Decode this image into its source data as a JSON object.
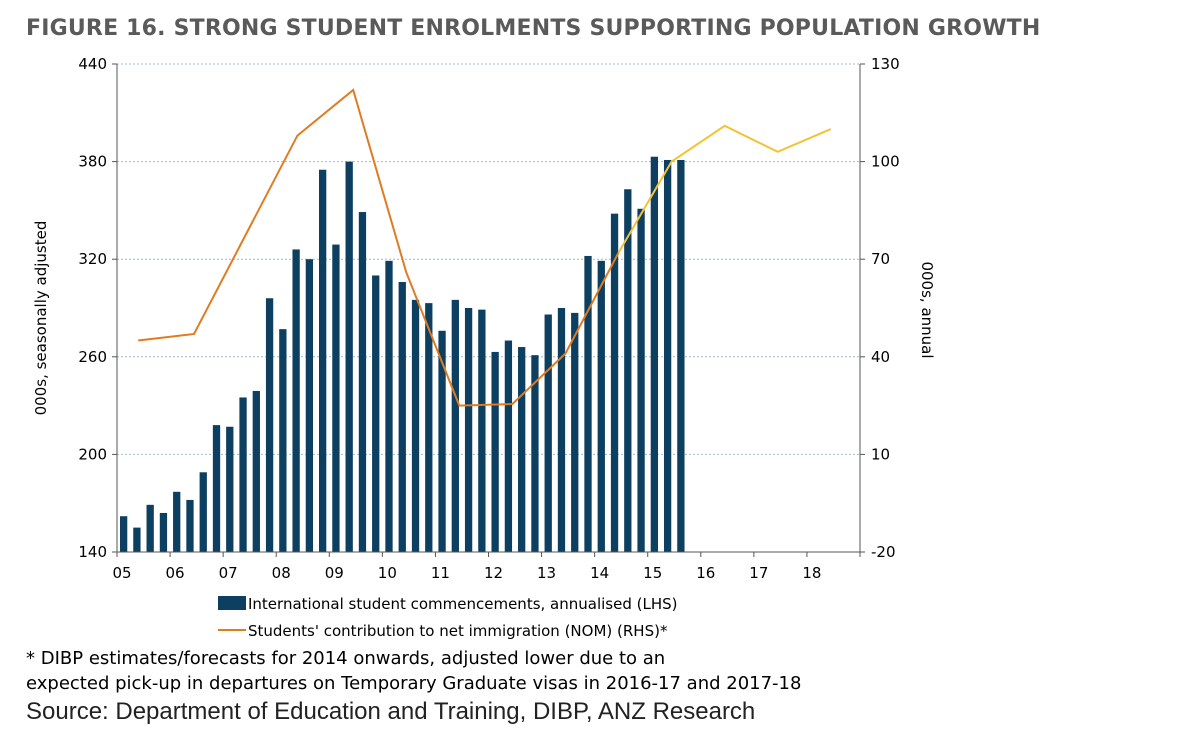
{
  "title": "FIGURE 16. STRONG STUDENT ENROLMENTS SUPPORTING POPULATION GROWTH",
  "footnote_line1": "* DIBP estimates/forecasts for 2014 onwards, adjusted lower due to an",
  "footnote_line2": "expected pick-up in departures on Temporary Graduate visas in 2016-17 and 2017-18",
  "source": "Source: Department of Education and Training, DIBP, ANZ Research",
  "colors": {
    "bars": "#0d4060",
    "line_history": "#e07b22",
    "line_forecast": "#f4c233",
    "grid": "#9dbccb"
  },
  "chart_data": {
    "type": "bar+line",
    "x_ticks": [
      "05",
      "06",
      "07",
      "08",
      "09",
      "10",
      "11",
      "12",
      "13",
      "14",
      "15",
      "16",
      "17",
      "18"
    ],
    "x_range": [
      2005,
      2019
    ],
    "ylabel_left": "000s, seasonally adjusted",
    "ylabel_right": "000s, annual",
    "ylim_left": [
      140,
      440
    ],
    "yticks_left": [
      140,
      200,
      260,
      320,
      380,
      440
    ],
    "ylim_right": [
      -20,
      130
    ],
    "yticks_right": [
      -20,
      10,
      40,
      70,
      100,
      130
    ],
    "grid": "horizontal",
    "legend_position": "bottom",
    "series": [
      {
        "name": "International student commencements, annualised (LHS)",
        "type": "bar",
        "axis": "left",
        "x": [
          2005.125,
          2005.375,
          2005.625,
          2005.875,
          2006.125,
          2006.375,
          2006.625,
          2006.875,
          2007.125,
          2007.375,
          2007.625,
          2007.875,
          2008.125,
          2008.375,
          2008.625,
          2008.875,
          2009.125,
          2009.375,
          2009.625,
          2009.875,
          2010.125,
          2010.375,
          2010.625,
          2010.875,
          2011.125,
          2011.375,
          2011.625,
          2011.875,
          2012.125,
          2012.375,
          2012.625,
          2012.875,
          2013.125,
          2013.375,
          2013.625,
          2013.875,
          2014.125,
          2014.375,
          2014.625,
          2014.875,
          2015.125,
          2015.375,
          2015.625
        ],
        "values": [
          162,
          155,
          169,
          164,
          177,
          172,
          189,
          218,
          217,
          235,
          239,
          296,
          277,
          326,
          320,
          375,
          329,
          380,
          349,
          310,
          319,
          306,
          295,
          293,
          276,
          295,
          290,
          289,
          263,
          270,
          266,
          261,
          286,
          290,
          287,
          322,
          319,
          348,
          363,
          351,
          383,
          381,
          381
        ]
      },
      {
        "name": "Students' contribution to net immigration (NOM) (RHS)*",
        "type": "line",
        "axis": "right",
        "x": [
          2005.4,
          2006.45,
          2008.4,
          2009.45,
          2010.45,
          2011.45,
          2012.45,
          2013.45,
          2014.45,
          2015.45,
          2016.45,
          2017.45,
          2018.45
        ],
        "values": [
          45,
          47,
          108,
          122,
          66,
          25,
          25.5,
          41,
          72,
          100,
          111,
          103,
          110
        ],
        "forecast_from_index": 8
      }
    ]
  }
}
